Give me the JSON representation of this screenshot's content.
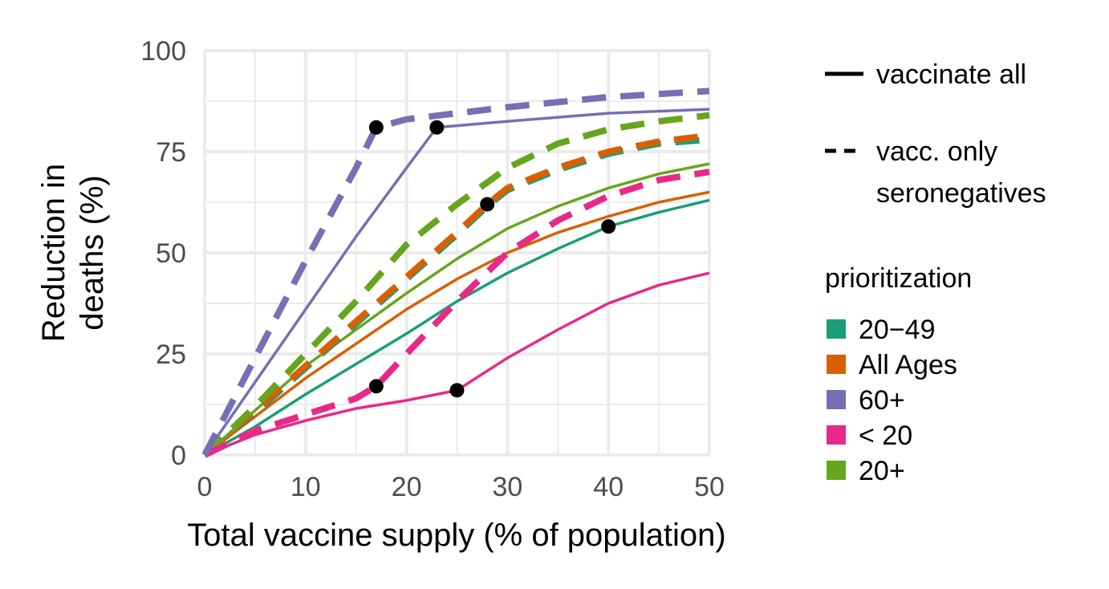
{
  "chart_data": {
    "type": "line",
    "xlabel": "Total vaccine supply (% of population)",
    "ylabel": [
      "Reduction in",
      "deaths (%)"
    ],
    "xlim": [
      0,
      50
    ],
    "ylim": [
      0,
      100
    ],
    "xticks": [
      0,
      10,
      20,
      30,
      40,
      50
    ],
    "yticks": [
      0,
      25,
      50,
      75,
      100
    ],
    "grid": true,
    "legend_placement": "right",
    "linetype_legend": [
      {
        "label": [
          "vaccinate all"
        ],
        "dash": "solid"
      },
      {
        "label": [
          "vacc. only",
          "seronegatives"
        ],
        "dash": "dashed"
      }
    ],
    "color_legend_title": "prioritization",
    "groups": [
      {
        "name": "20−49",
        "color": "#1b9e77"
      },
      {
        "name": "All Ages",
        "color": "#d95f02"
      },
      {
        "name": "60+",
        "color": "#7570b3"
      },
      {
        "name": "< 20",
        "color": "#e7298a"
      },
      {
        "name": "20+",
        "color": "#66a61e"
      }
    ],
    "series": [
      {
        "group": "20−49",
        "dash": "solid",
        "x": [
          0,
          5,
          10,
          15,
          20,
          25,
          30,
          35,
          40,
          45,
          50
        ],
        "y": [
          0,
          7,
          15,
          22.5,
          30,
          38,
          45,
          51,
          56.5,
          60,
          63
        ]
      },
      {
        "group": "All Ages",
        "dash": "solid",
        "x": [
          0,
          5,
          10,
          15,
          20,
          25,
          30,
          35,
          40,
          45,
          50
        ],
        "y": [
          0,
          9.5,
          19,
          27.5,
          36,
          43.5,
          50,
          55,
          59,
          62.5,
          65
        ]
      },
      {
        "group": "20+",
        "dash": "solid",
        "x": [
          0,
          5,
          10,
          15,
          20,
          25,
          30,
          35,
          40,
          45,
          50
        ],
        "y": [
          0,
          11,
          22,
          31,
          40,
          48.5,
          56,
          61.5,
          66,
          69.5,
          72
        ]
      },
      {
        "group": "< 20",
        "dash": "solid",
        "x": [
          0,
          5,
          10,
          15,
          20,
          25,
          30,
          35,
          40,
          45,
          50
        ],
        "y": [
          0,
          5,
          8.5,
          11.5,
          13.5,
          16,
          24,
          31,
          37.5,
          42,
          45
        ]
      },
      {
        "group": "60+",
        "dash": "solid",
        "x": [
          0,
          5,
          10,
          15,
          20,
          23,
          30,
          40,
          50
        ],
        "y": [
          0,
          18,
          36,
          54,
          71,
          81,
          82.5,
          84.5,
          85.5
        ]
      },
      {
        "group": "20−49",
        "dash": "dashed",
        "x": [
          0,
          5,
          10,
          15,
          20,
          25,
          28,
          30,
          35,
          40,
          45,
          50
        ],
        "y": [
          0,
          10.5,
          21.5,
          32.5,
          43.5,
          54.5,
          61.5,
          65.5,
          70.5,
          74.5,
          77,
          78
        ]
      },
      {
        "group": "All Ages",
        "dash": "dashed",
        "x": [
          0,
          5,
          10,
          15,
          20,
          25,
          28,
          30,
          35,
          40,
          45,
          50
        ],
        "y": [
          0,
          11,
          22,
          33,
          44,
          55,
          62,
          66,
          71,
          75,
          77.5,
          79
        ]
      },
      {
        "group": "20+",
        "dash": "dashed",
        "x": [
          0,
          5,
          10,
          15,
          20,
          25,
          30,
          35,
          40,
          45,
          50
        ],
        "y": [
          0,
          12,
          25,
          38,
          52,
          62,
          71,
          77,
          80.5,
          82.5,
          84
        ]
      },
      {
        "group": "< 20",
        "dash": "dashed",
        "x": [
          0,
          5,
          10,
          15,
          17,
          20,
          25,
          30,
          35,
          40,
          45,
          50
        ],
        "y": [
          0,
          6,
          10,
          14,
          17,
          25,
          38,
          50,
          58,
          64,
          68,
          70
        ]
      },
      {
        "group": "60+",
        "dash": "dashed",
        "x": [
          0,
          5,
          10,
          15,
          17,
          20,
          30,
          40,
          50
        ],
        "y": [
          0,
          24,
          48,
          71,
          81,
          83,
          86,
          88.5,
          90
        ]
      }
    ],
    "points": [
      {
        "x": 17,
        "y": 81
      },
      {
        "x": 23,
        "y": 81
      },
      {
        "x": 28,
        "y": 62
      },
      {
        "x": 40,
        "y": 56.5
      },
      {
        "x": 17,
        "y": 17
      },
      {
        "x": 25,
        "y": 16
      }
    ]
  }
}
